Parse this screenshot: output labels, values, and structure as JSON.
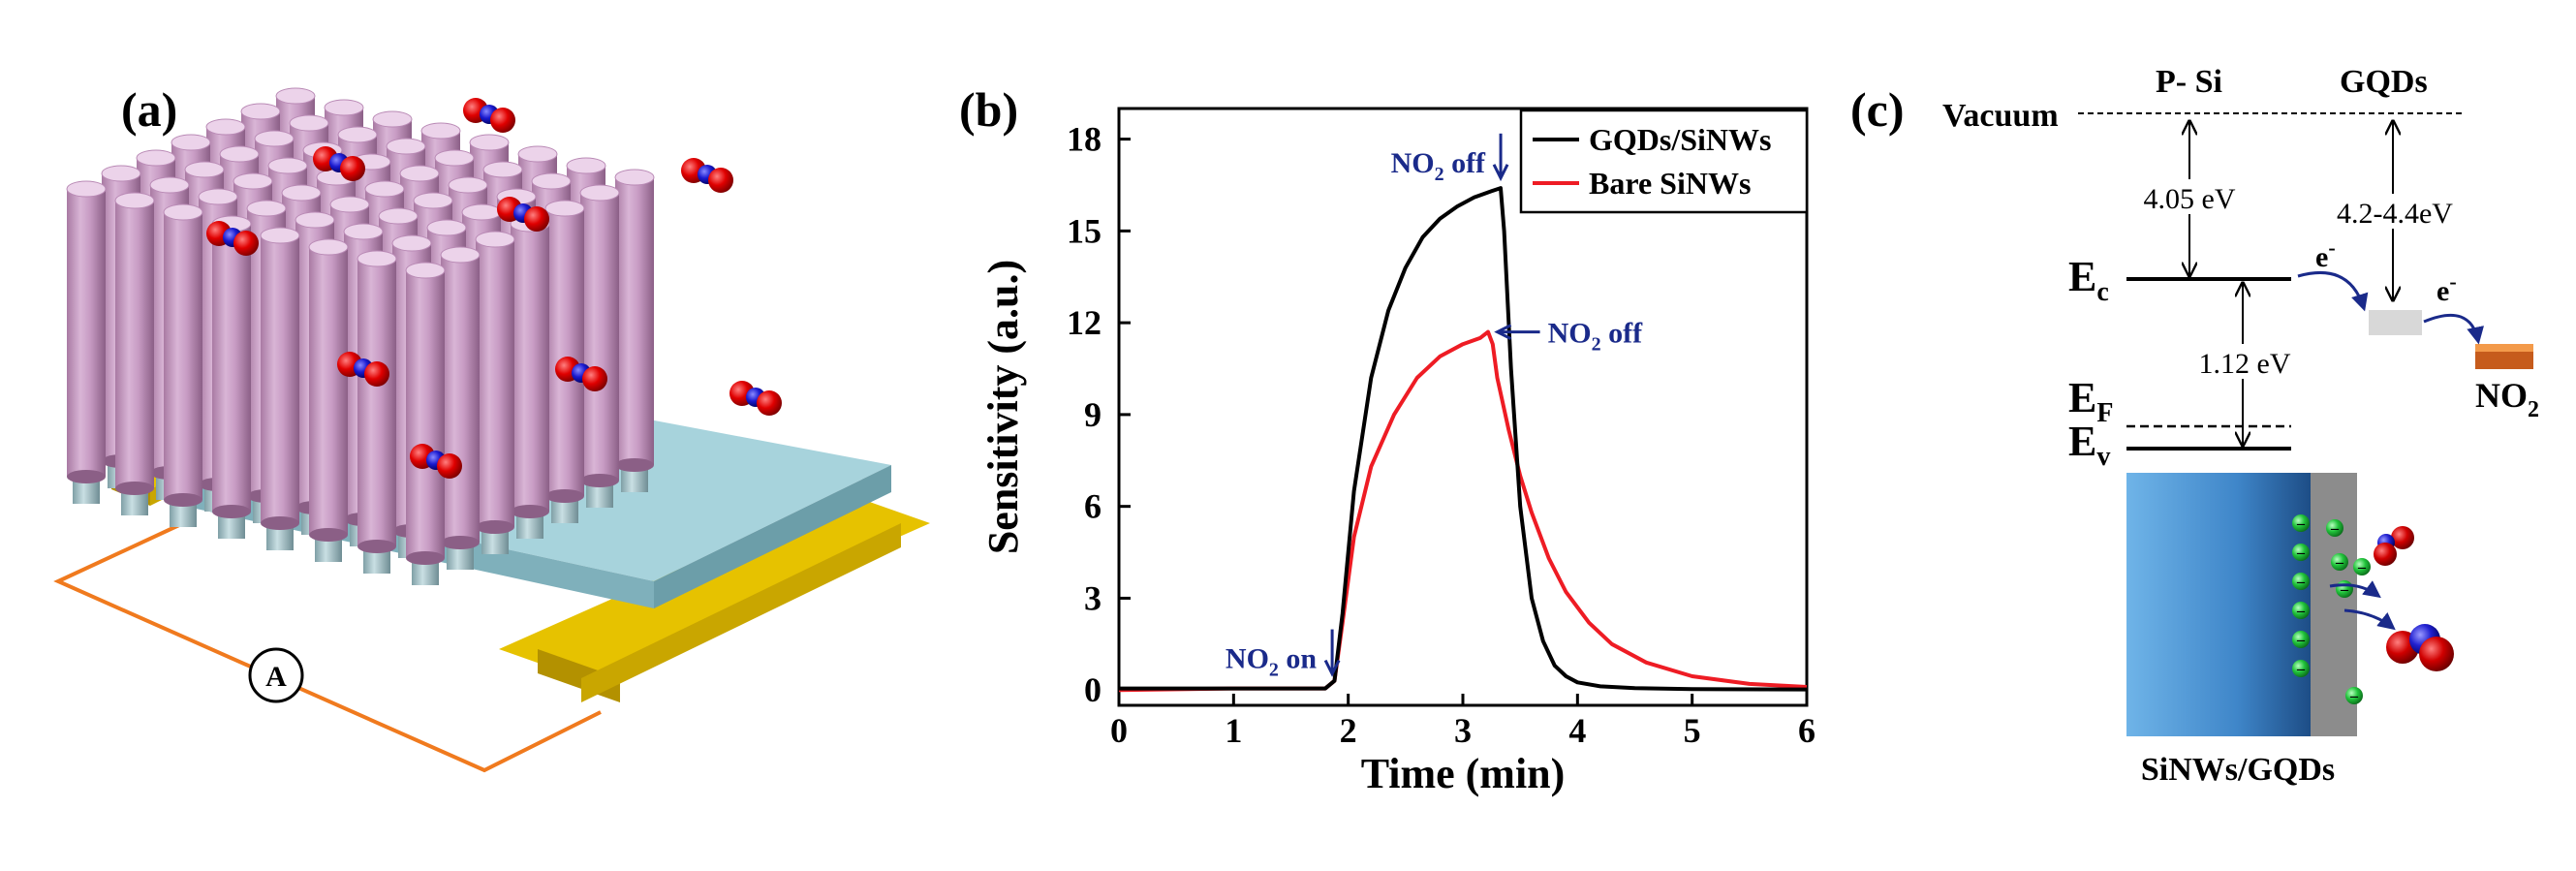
{
  "panels": {
    "a": {
      "label": "(a)",
      "ammeter": "A"
    },
    "b": {
      "label": "(b)"
    },
    "c": {
      "label": "(c)",
      "vacuum": "Vacuum",
      "psi": "P- Si",
      "gqds": "GQDs",
      "si_affinity": "4.05 eV",
      "gqd_affinity": "4.2-4.4eV",
      "bandgap": "1.12 eV",
      "ec": "E",
      "ec_sub": "c",
      "ef": "E",
      "ef_sub": "F",
      "ev": "E",
      "ev_sub": "v",
      "electron": "e",
      "electron_sup": "-",
      "no2": "NO",
      "no2_sub": "2",
      "caption": "SiNWs/GQDs",
      "charge_symbol": "–"
    }
  },
  "chart_data": {
    "type": "line",
    "title": "",
    "xlabel": "Time (min)",
    "ylabel": "Sensitivity (a.u.)",
    "xlim": [
      0,
      6
    ],
    "ylim": [
      -0.5,
      19
    ],
    "xticks": [
      0,
      1,
      2,
      3,
      4,
      5,
      6
    ],
    "yticks": [
      0,
      3,
      6,
      9,
      12,
      15,
      18
    ],
    "grid": false,
    "legend_position": "top-right",
    "series": [
      {
        "name": "GQDs/SiNWs",
        "color": "#000000",
        "x": [
          0,
          1.0,
          1.8,
          1.88,
          1.95,
          2.05,
          2.2,
          2.35,
          2.5,
          2.65,
          2.8,
          2.95,
          3.1,
          3.25,
          3.33,
          3.36,
          3.42,
          3.5,
          3.6,
          3.7,
          3.8,
          3.9,
          4.0,
          4.2,
          4.5,
          5.0,
          6.0
        ],
        "y": [
          0.05,
          0.05,
          0.05,
          0.3,
          2.5,
          6.5,
          10.2,
          12.4,
          13.8,
          14.8,
          15.4,
          15.8,
          16.1,
          16.3,
          16.4,
          15.0,
          10.5,
          6.0,
          3.0,
          1.6,
          0.8,
          0.45,
          0.25,
          0.12,
          0.06,
          0.03,
          0.02
        ]
      },
      {
        "name": "Bare SiNWs",
        "color": "#ee1c24",
        "x": [
          0,
          1.0,
          1.8,
          1.88,
          1.95,
          2.05,
          2.2,
          2.4,
          2.6,
          2.8,
          3.0,
          3.15,
          3.22,
          3.26,
          3.3,
          3.4,
          3.5,
          3.6,
          3.75,
          3.9,
          4.1,
          4.3,
          4.6,
          5.0,
          5.5,
          6.0
        ],
        "y": [
          0.0,
          0.05,
          0.05,
          0.3,
          2.2,
          5.0,
          7.3,
          9.0,
          10.2,
          10.9,
          11.3,
          11.5,
          11.7,
          11.3,
          10.2,
          8.5,
          7.0,
          5.8,
          4.3,
          3.2,
          2.2,
          1.5,
          0.9,
          0.45,
          0.2,
          0.1
        ]
      }
    ],
    "annotations": [
      {
        "text": "NO",
        "sub": "2",
        "suffix": " on",
        "x": 1.86,
        "y": 0.4,
        "arrow": "down"
      },
      {
        "text": "NO",
        "sub": "2",
        "suffix": " off",
        "x": 3.33,
        "y": 16.6,
        "arrow": "down"
      },
      {
        "text": "NO",
        "sub": "2",
        "suffix": " off",
        "x": 3.25,
        "y": 11.7,
        "arrow": "left"
      }
    ]
  }
}
